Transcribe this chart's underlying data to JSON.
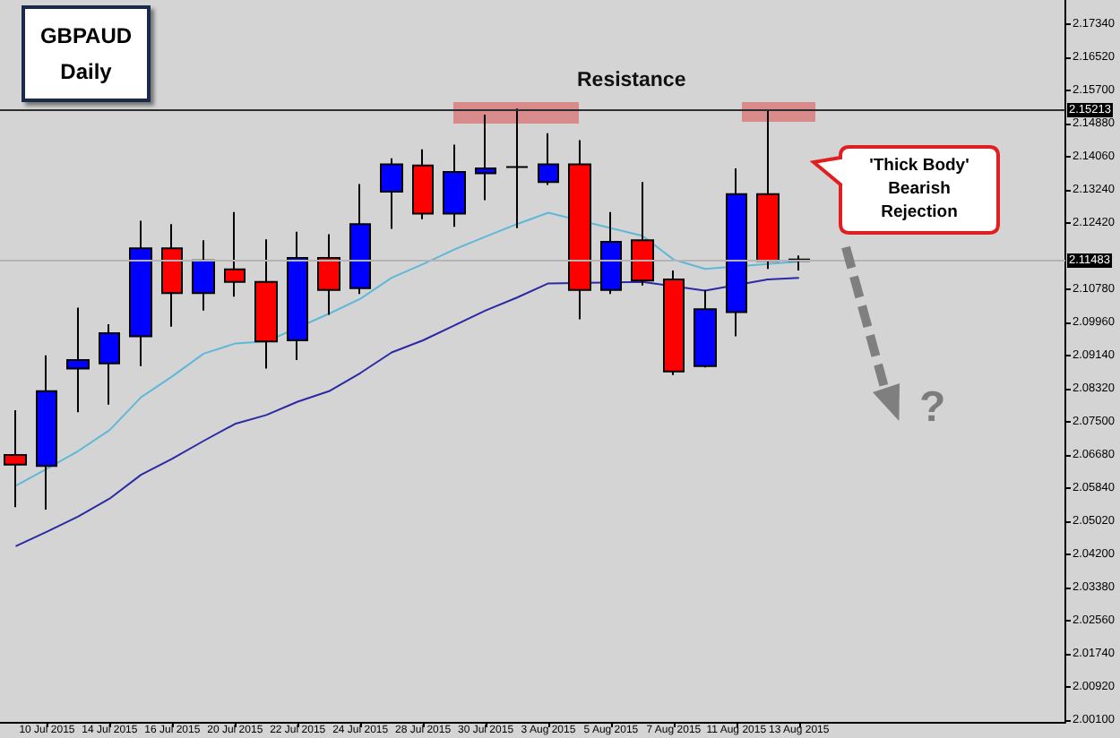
{
  "chart_data": {
    "type": "candlestick",
    "title": "GBPAUD",
    "subtitle": "Daily",
    "categories": [
      null,
      "10 Jul 2015",
      null,
      "14 Jul 2015",
      null,
      "16 Jul 2015",
      null,
      "20 Jul 2015",
      null,
      "22 Jul 2015",
      null,
      "24 Jul 2015",
      null,
      "28 Jul 2015",
      null,
      "30 Jul 2015",
      null,
      "3 Aug 2015",
      null,
      "5 Aug 2015",
      null,
      "7 Aug 2015",
      null,
      "11 Aug 2015",
      null,
      "13 Aug 2015"
    ],
    "ohlc": [
      [
        2.0667,
        2.0778,
        2.0538,
        2.0643
      ],
      [
        2.064,
        2.0914,
        2.0532,
        2.0825
      ],
      [
        2.0881,
        2.1032,
        2.0773,
        2.0902
      ],
      [
        2.0894,
        2.0991,
        2.0792,
        2.0969
      ],
      [
        2.0961,
        2.1247,
        2.0887,
        2.1179
      ],
      [
        2.1179,
        2.1239,
        2.0985,
        2.1068
      ],
      [
        2.1068,
        2.1199,
        2.1025,
        2.1149
      ],
      [
        2.1127,
        2.1269,
        2.1059,
        2.1096
      ],
      [
        2.1096,
        2.1201,
        2.0881,
        2.0948
      ],
      [
        2.0951,
        2.122,
        2.0902,
        2.1155
      ],
      [
        2.1155,
        2.1214,
        2.1014,
        2.1076
      ],
      [
        2.108,
        2.1338,
        2.1066,
        2.1239
      ],
      [
        2.1319,
        2.1402,
        2.1227,
        2.1387
      ],
      [
        2.1384,
        2.1424,
        2.1251,
        2.1265
      ],
      [
        2.1265,
        2.1436,
        2.1232,
        2.1368
      ],
      [
        2.1365,
        2.151,
        2.1298,
        2.1377
      ],
      [
        2.138,
        2.1525,
        2.1229,
        2.138
      ],
      [
        2.1343,
        2.1464,
        2.1336,
        2.1387
      ],
      [
        2.1387,
        2.1447,
        2.1003,
        2.1076
      ],
      [
        2.1076,
        2.1269,
        2.1066,
        2.1195
      ],
      [
        2.1199,
        2.1343,
        2.1087,
        2.1099
      ],
      [
        2.1102,
        2.1124,
        2.0865,
        2.0874
      ],
      [
        2.0887,
        2.1076,
        2.0884,
        2.1028
      ],
      [
        2.1021,
        2.1377,
        2.0961,
        2.1313
      ],
      [
        2.1313,
        2.152,
        2.1128,
        2.1148
      ],
      [
        2.1151,
        2.1161,
        2.1124,
        2.1148
      ]
    ],
    "colors": [
      "#ff0000",
      "#0000ff",
      "#0000ff",
      "#0000ff",
      "#0000ff",
      "#ff0000",
      "#0000ff",
      "#ff0000",
      "#ff0000",
      "#0000ff",
      "#ff0000",
      "#0000ff",
      "#0000ff",
      "#ff0000",
      "#0000ff",
      "#0000ff",
      "#000000",
      "#0000ff",
      "#ff0000",
      "#0000ff",
      "#ff0000",
      "#ff0000",
      "#0000ff",
      "#0000ff",
      "#ff0000",
      "#000000"
    ],
    "series": [
      {
        "type": "line",
        "color": "#5fb8d8",
        "values": [
          2.0591,
          2.0633,
          2.0677,
          2.0729,
          2.081,
          2.0862,
          2.0918,
          2.0943,
          2.0948,
          null,
          2.1017,
          2.1054,
          2.1106,
          2.114,
          2.1176,
          2.1208,
          2.1239,
          2.1267,
          null,
          2.1229,
          2.121,
          2.1151,
          2.1128,
          null,
          null,
          2.1146
        ]
      },
      {
        "type": "line",
        "color": "#2a2aa5",
        "values": [
          2.0441,
          2.0477,
          2.0515,
          2.0559,
          2.0618,
          2.0658,
          2.0702,
          2.0744,
          2.0766,
          2.0799,
          2.0825,
          2.087,
          2.0921,
          2.0951,
          2.0988,
          2.1025,
          2.1057,
          2.1092,
          null,
          null,
          2.1096,
          null,
          2.1074,
          null,
          2.1102,
          2.1106
        ]
      }
    ],
    "ylim": [
      2.0006,
      2.1794
    ],
    "yticks": [
      {
        "value": 2.001,
        "label": "2.00100"
      },
      {
        "value": 2.0092,
        "label": "2.00920"
      },
      {
        "value": 2.0174,
        "label": "2.01740"
      },
      {
        "value": 2.0256,
        "label": "2.02560"
      },
      {
        "value": 2.0338,
        "label": "2.03380"
      },
      {
        "value": 2.042,
        "label": "2.04200"
      },
      {
        "value": 2.0502,
        "label": "2.05020"
      },
      {
        "value": 2.0584,
        "label": "2.05840"
      },
      {
        "value": 2.0668,
        "label": "2.06680"
      },
      {
        "value": 2.075,
        "label": "2.07500"
      },
      {
        "value": 2.0832,
        "label": "2.08320"
      },
      {
        "value": 2.0914,
        "label": "2.09140"
      },
      {
        "value": 2.0996,
        "label": "2.09960"
      },
      {
        "value": 2.1078,
        "label": "2.10780"
      },
      {
        "value": 2.1242,
        "label": "2.12420"
      },
      {
        "value": 2.1324,
        "label": "2.13240"
      },
      {
        "value": 2.1406,
        "label": "2.14060"
      },
      {
        "value": 2.1488,
        "label": "2.14880"
      },
      {
        "value": 2.157,
        "label": "2.15700"
      },
      {
        "value": 2.1652,
        "label": "2.16520"
      },
      {
        "value": 2.1734,
        "label": "2.17340"
      }
    ],
    "ref_lines": [
      {
        "axis": "y",
        "value": 2.15213,
        "label": "2.15213",
        "color": "#2e2e2e"
      },
      {
        "axis": "y",
        "value": 2.11483,
        "label": "2.11483",
        "color": "#b4b4b4"
      }
    ],
    "annotations": [
      "Resistance",
      "'Thick Body' Bearish Rejection",
      "?"
    ],
    "marker": "none"
  }
}
